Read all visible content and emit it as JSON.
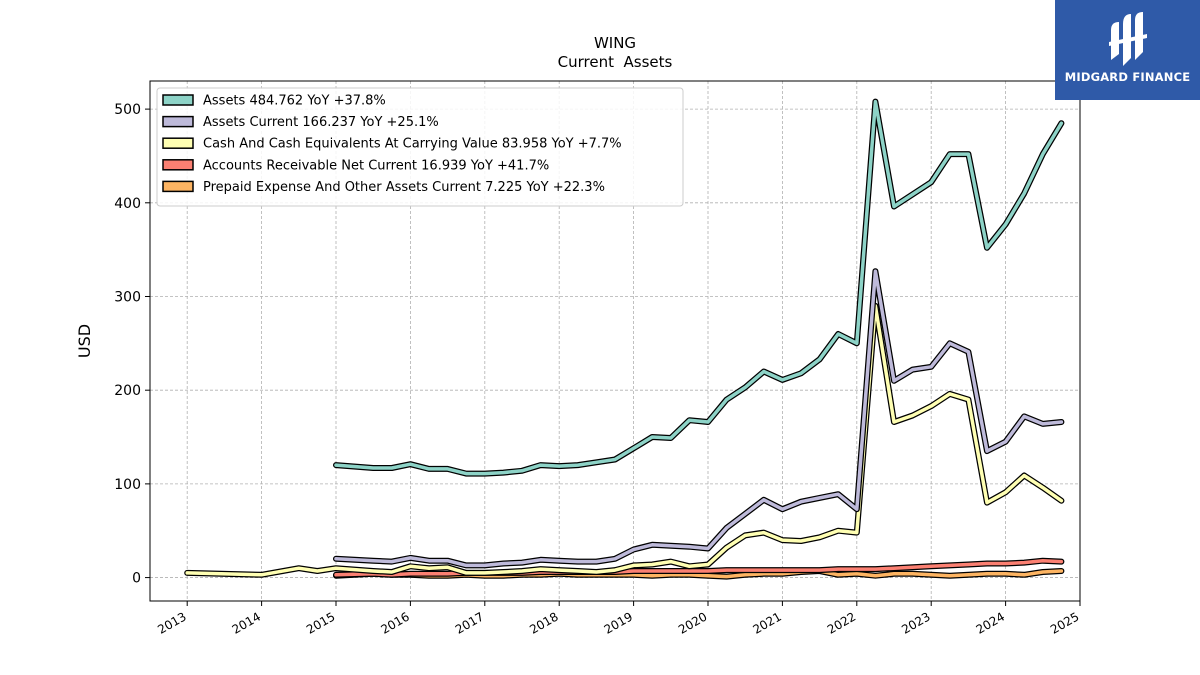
{
  "logo": {
    "text": "MIDGARD FINANCE"
  },
  "chart_data": {
    "type": "line",
    "title": "WING",
    "subtitle": "Current  Assets",
    "xlabel": "",
    "ylabel": "USD",
    "xlim": [
      2012.5,
      2025.0
    ],
    "ylim": [
      -25,
      530
    ],
    "xticks": [
      2013,
      2014,
      2015,
      2016,
      2017,
      2018,
      2019,
      2020,
      2021,
      2022,
      2023,
      2024,
      2025
    ],
    "xtick_labels": [
      "2013",
      "2014",
      "2015",
      "2016",
      "2017",
      "2018",
      "2019",
      "2020",
      "2021",
      "2022",
      "2023",
      "2024",
      "2025"
    ],
    "yticks": [
      0,
      100,
      200,
      300,
      400,
      500
    ],
    "ytick_labels": [
      "0",
      "100",
      "200",
      "300",
      "400",
      "500"
    ],
    "grid": true,
    "legend_position": "top-left",
    "series": [
      {
        "name": "Assets  484.762 YoY +37.8%",
        "color": "#8dd3c7",
        "x": [
          2015.0,
          2015.5,
          2015.75,
          2016.0,
          2016.25,
          2016.5,
          2016.75,
          2017.0,
          2017.25,
          2017.5,
          2017.75,
          2018.0,
          2018.25,
          2018.5,
          2018.75,
          2019.0,
          2019.25,
          2019.5,
          2019.75,
          2020.0,
          2020.25,
          2020.5,
          2020.75,
          2021.0,
          2021.25,
          2021.5,
          2021.75,
          2022.0,
          2022.25,
          2022.5,
          2022.75,
          2023.0,
          2023.25,
          2023.5,
          2023.75,
          2024.0,
          2024.25,
          2024.5,
          2024.75
        ],
        "values": [
          120,
          117,
          117,
          121,
          116,
          116,
          111,
          111,
          112,
          114,
          120,
          119,
          120,
          123,
          126,
          138,
          150,
          149,
          168,
          166,
          190,
          203,
          220,
          211,
          218,
          233,
          260,
          250,
          508,
          396,
          409,
          422,
          452,
          452,
          352,
          377,
          410,
          452,
          485
        ]
      },
      {
        "name": "Assets Current  166.237 YoY +25.1%",
        "color": "#bebada",
        "x": [
          2015.0,
          2015.5,
          2015.75,
          2016.0,
          2016.25,
          2016.5,
          2016.75,
          2017.0,
          2017.25,
          2017.5,
          2017.75,
          2018.0,
          2018.25,
          2018.5,
          2018.75,
          2019.0,
          2019.25,
          2019.5,
          2019.75,
          2020.0,
          2020.25,
          2020.5,
          2020.75,
          2021.0,
          2021.25,
          2021.5,
          2021.75,
          2022.0,
          2022.25,
          2022.5,
          2022.75,
          2023.0,
          2023.25,
          2023.5,
          2023.75,
          2024.0,
          2024.25,
          2024.5,
          2024.75
        ],
        "values": [
          20,
          18,
          17,
          21,
          18,
          18,
          13,
          13,
          15,
          16,
          19,
          18,
          17,
          17,
          20,
          30,
          35,
          34,
          33,
          31,
          53,
          68,
          83,
          73,
          81,
          85,
          89,
          73,
          327,
          210,
          222,
          225,
          250,
          241,
          135,
          145,
          172,
          164,
          166
        ]
      },
      {
        "name": "Cash And Cash Equivalents At Carrying Value  83.958 YoY +7.7%",
        "color": "#ffffb3",
        "x": [
          2013.0,
          2014.0,
          2014.5,
          2014.75,
          2015.0,
          2015.5,
          2015.75,
          2016.0,
          2016.25,
          2016.5,
          2016.75,
          2017.0,
          2017.25,
          2017.5,
          2017.75,
          2018.0,
          2018.25,
          2018.5,
          2018.75,
          2019.0,
          2019.25,
          2019.5,
          2019.75,
          2020.0,
          2020.25,
          2020.5,
          2020.75,
          2021.0,
          2021.25,
          2021.5,
          2021.75,
          2022.0,
          2022.25,
          2022.5,
          2022.75,
          2023.0,
          2023.25,
          2023.5,
          2023.75,
          2024.0,
          2024.25,
          2024.5,
          2024.75
        ],
        "values": [
          5,
          3,
          10,
          7,
          10,
          7,
          6,
          12,
          10,
          11,
          5,
          5,
          6,
          7,
          9,
          8,
          7,
          6,
          8,
          13,
          14,
          17,
          12,
          14,
          32,
          45,
          48,
          40,
          39,
          43,
          50,
          48,
          290,
          166,
          173,
          183,
          196,
          190,
          80,
          91,
          109,
          96,
          82
        ]
      },
      {
        "name": "Accounts Receivable Net Current  16.939 YoY +41.7%",
        "color": "#fb8072",
        "x": [
          2015.0,
          2015.5,
          2015.75,
          2016.0,
          2016.25,
          2016.5,
          2016.75,
          2017.0,
          2017.25,
          2017.5,
          2017.75,
          2018.0,
          2018.25,
          2018.5,
          2018.75,
          2019.0,
          2019.25,
          2019.5,
          2019.75,
          2020.0,
          2020.25,
          2020.5,
          2020.75,
          2021.0,
          2021.25,
          2021.5,
          2021.75,
          2022.0,
          2022.25,
          2022.5,
          2022.75,
          2023.0,
          2023.25,
          2023.5,
          2023.75,
          2024.0,
          2024.25,
          2024.5,
          2024.75
        ],
        "values": [
          3,
          4,
          3,
          4,
          4,
          4,
          5,
          5,
          5,
          5,
          6,
          6,
          6,
          6,
          6,
          7,
          7,
          7,
          7,
          7,
          8,
          8,
          8,
          8,
          8,
          8,
          9,
          9,
          9,
          10,
          11,
          12,
          13,
          14,
          15,
          15,
          16,
          18,
          17
        ]
      },
      {
        "name": "Prepaid Expense And Other Assets Current  7.225 YoY +22.3%",
        "color": "#fdb462",
        "x": [
          2015.0,
          2015.5,
          2015.75,
          2016.0,
          2016.25,
          2016.5,
          2016.75,
          2017.0,
          2017.25,
          2017.5,
          2017.75,
          2018.0,
          2018.25,
          2018.5,
          2018.75,
          2019.0,
          2019.25,
          2019.5,
          2019.75,
          2020.0,
          2020.25,
          2020.5,
          2020.75,
          2021.0,
          2021.25,
          2021.5,
          2021.75,
          2022.0,
          2022.25,
          2022.5,
          2022.75,
          2023.0,
          2023.25,
          2023.5,
          2023.75,
          2024.0,
          2024.25,
          2024.5,
          2024.75
        ],
        "values": [
          2,
          4,
          3,
          3,
          2,
          2,
          3,
          2,
          2,
          3,
          3,
          4,
          3,
          3,
          3,
          3,
          2,
          3,
          3,
          2,
          1,
          3,
          4,
          4,
          6,
          7,
          3,
          4,
          2,
          4,
          4,
          3,
          2,
          3,
          4,
          4,
          3,
          6,
          7
        ]
      }
    ]
  }
}
